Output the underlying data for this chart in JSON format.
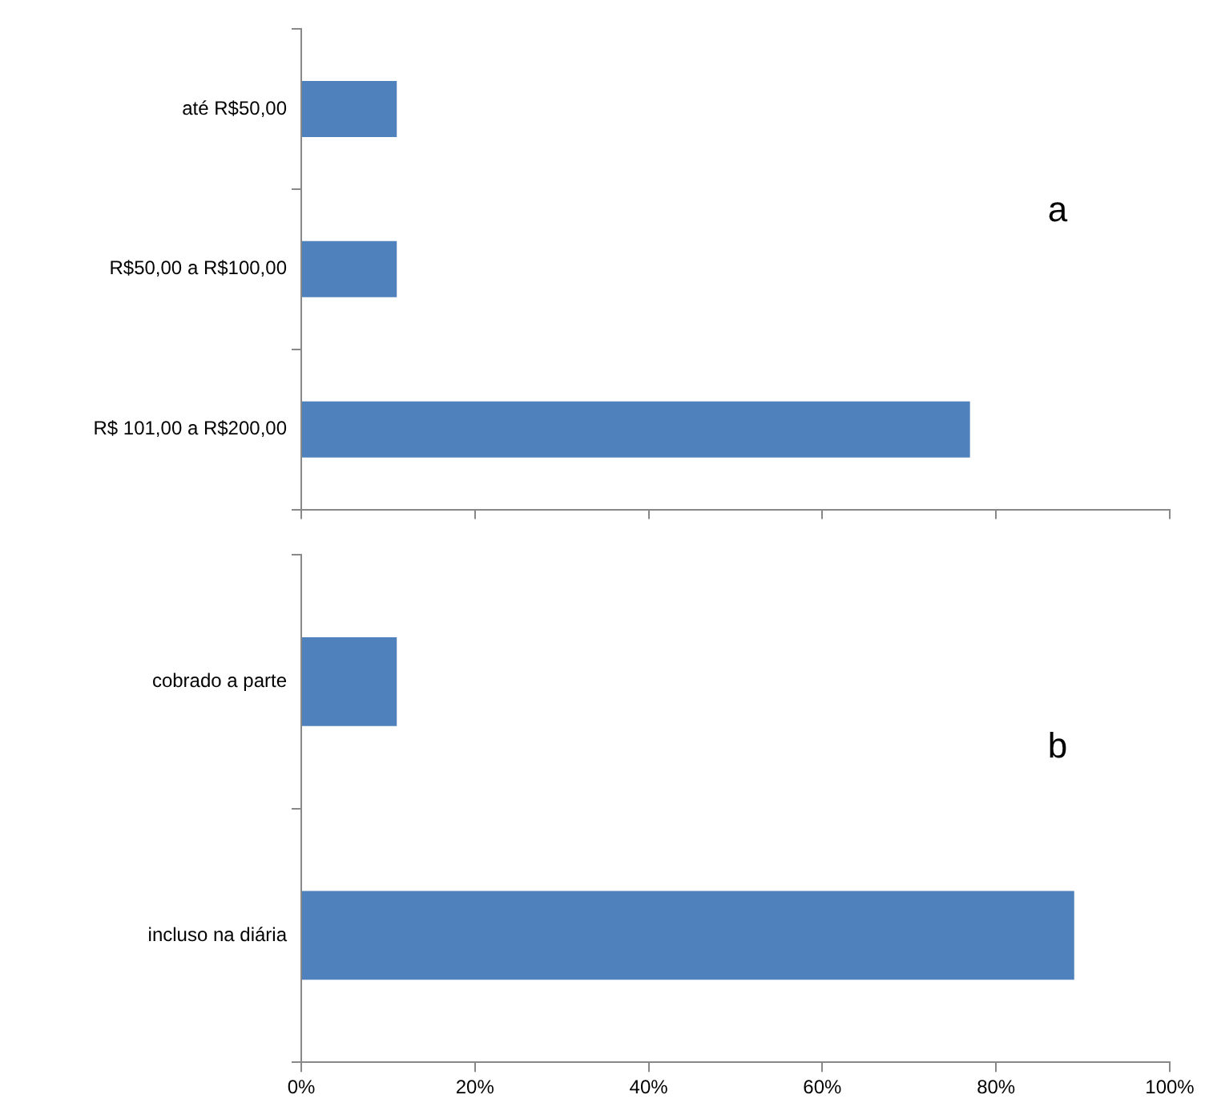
{
  "chart_data": [
    {
      "type": "bar",
      "orientation": "horizontal",
      "categories": [
        "até R$50,00",
        "R$50,00 a R$100,00",
        "R$ 101,00 a R$200,00"
      ],
      "values": [
        11,
        11,
        77
      ],
      "color": "#4f81bd",
      "xlim": [
        0,
        100
      ],
      "xticks": [
        {
          "value": 0,
          "label": null
        },
        {
          "value": 20,
          "label": null
        },
        {
          "value": 40,
          "label": null
        },
        {
          "value": 60,
          "label": null
        },
        {
          "value": 80,
          "label": null
        },
        {
          "value": 100,
          "label": null
        }
      ],
      "tick_labels": "y",
      "grid": false,
      "legend": false,
      "annotations": [
        "a"
      ]
    },
    {
      "type": "bar",
      "orientation": "horizontal",
      "categories": [
        "cobrado a parte",
        "incluso na diária"
      ],
      "values": [
        11,
        89
      ],
      "color": "#4f81bd",
      "xlim": [
        0,
        100
      ],
      "xticks": [
        {
          "value": 0,
          "label": "0%"
        },
        {
          "value": 20,
          "label": "20%"
        },
        {
          "value": 40,
          "label": "40%"
        },
        {
          "value": 60,
          "label": "60%"
        },
        {
          "value": 80,
          "label": "80%"
        },
        {
          "value": 100,
          "label": "100%"
        }
      ],
      "grid": false,
      "legend": false,
      "annotations": [
        "b"
      ]
    }
  ]
}
